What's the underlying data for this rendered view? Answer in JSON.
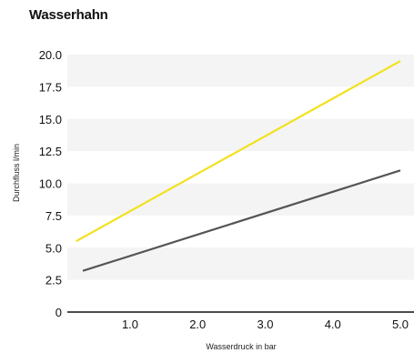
{
  "chart_data": {
    "type": "line",
    "title": "Wasserhahn",
    "xlabel": "Wasserdruck in bar",
    "ylabel": "Durchfluss l/min",
    "xlim": [
      0,
      5.2
    ],
    "ylim": [
      0,
      20.0
    ],
    "x_ticks": [
      "1.0",
      "2.0",
      "3.0",
      "4.0",
      "5.0"
    ],
    "y_ticks": [
      "0",
      "2.5",
      "5.0",
      "7.5",
      "10.0",
      "12.5",
      "15.0",
      "17.5",
      "20.0"
    ],
    "grid": "horizontal bands",
    "series": [
      {
        "color": "#f2e11e",
        "x": [
          0.2,
          5.0
        ],
        "y": [
          5.5,
          19.5
        ]
      },
      {
        "color": "#555555",
        "x": [
          0.3,
          5.0
        ],
        "y": [
          3.2,
          11.0
        ]
      }
    ]
  }
}
